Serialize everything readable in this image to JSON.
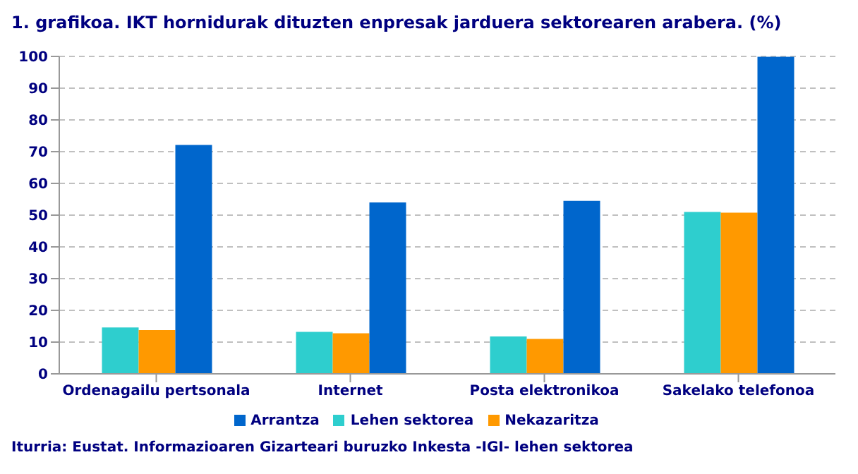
{
  "chart_data": {
    "type": "bar",
    "title": "1. grafikoa. IKT hornidurak dituzten enpresak jarduera sektorearen arabera. (%)",
    "categories": [
      "Ordenagailu pertsonala",
      "Internet",
      "Posta elektronikoa",
      "Sakelako telefonoa"
    ],
    "series": [
      {
        "name": "Lehen sektorea",
        "color": "#2ecece",
        "values": [
          14.6,
          13.2,
          11.8,
          51
        ]
      },
      {
        "name": "Nekazaritza",
        "color": "#ff9900",
        "values": [
          13.8,
          12.8,
          11,
          50.8
        ]
      },
      {
        "name": "Arrantza",
        "color": "#0066cc",
        "values": [
          72.1,
          54,
          54.5,
          99.9
        ]
      }
    ],
    "ylim": [
      0,
      100
    ],
    "yticks": [
      0,
      10,
      20,
      30,
      40,
      50,
      60,
      70,
      80,
      90,
      100
    ],
    "grid": "y",
    "legend": "bottom",
    "annotations": [
      "Iturria: Eustat. Informazioaren Gizarteari buruzko Inkesta -IGI- lehen sektorea"
    ]
  }
}
